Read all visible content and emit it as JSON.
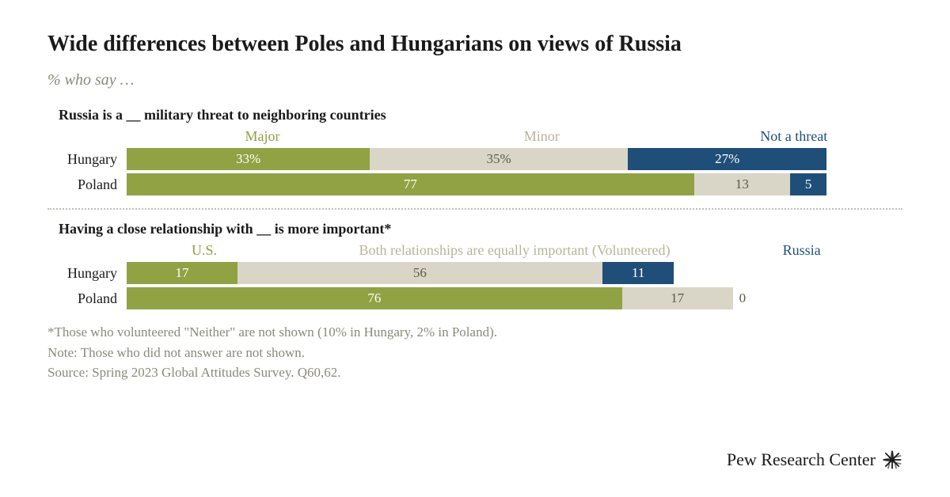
{
  "title": "Wide differences between Poles and Hungarians on views of Russia",
  "subtitle": "% who say …",
  "colors": {
    "green": "#90a244",
    "beige": "#d9d6c7",
    "navy": "#1f4e79",
    "text_dark": "#1a1a1a",
    "text_light": "#ffffff",
    "text_muted": "#8a8a7a"
  },
  "chart1": {
    "title": "Russia is a __ military threat to neighboring countries",
    "legend": [
      {
        "label": "Major",
        "color": "#90a244"
      },
      {
        "label": "Minor",
        "color": "#b8b49a"
      },
      {
        "label": "Not a threat",
        "color": "#1f4e79"
      }
    ],
    "legend_widths": [
      35,
      37,
      28
    ],
    "label_offset": 100,
    "total_width": 95,
    "rows": [
      {
        "label": "Hungary",
        "segs": [
          {
            "value": 33,
            "display": "33%",
            "color": "#90a244",
            "text_color": "#ffffff"
          },
          {
            "value": 35,
            "display": "35%",
            "color": "#d9d6c7",
            "text_color": "#5a5a4a"
          },
          {
            "value": 27,
            "display": "27%",
            "color": "#1f4e79",
            "text_color": "#ffffff"
          }
        ]
      },
      {
        "label": "Poland",
        "segs": [
          {
            "value": 77,
            "display": "77",
            "color": "#90a244",
            "text_color": "#ffffff"
          },
          {
            "value": 13,
            "display": "13",
            "color": "#d9d6c7",
            "text_color": "#5a5a4a"
          },
          {
            "value": 5,
            "display": "5",
            "color": "#1f4e79",
            "text_color": "#ffffff"
          }
        ]
      }
    ]
  },
  "chart2": {
    "title": "Having a close relationship with __ is more important*",
    "legend": [
      {
        "label": "U.S.",
        "color": "#90a244"
      },
      {
        "label": "Both relationships are equally important (Volunteered)",
        "color": "#b8b49a"
      },
      {
        "label": "Russia",
        "color": "#1f4e79"
      }
    ],
    "legend_widths": [
      20,
      60,
      14
    ],
    "label_offset": 100,
    "total_width": 84,
    "rows": [
      {
        "label": "Hungary",
        "segs": [
          {
            "value": 17,
            "display": "17",
            "color": "#90a244",
            "text_color": "#ffffff"
          },
          {
            "value": 56,
            "display": "56",
            "color": "#d9d6c7",
            "text_color": "#5a5a4a"
          },
          {
            "value": 11,
            "display": "11",
            "color": "#1f4e79",
            "text_color": "#ffffff"
          }
        ]
      },
      {
        "label": "Poland",
        "segs": [
          {
            "value": 76,
            "display": "76",
            "color": "#90a244",
            "text_color": "#ffffff"
          },
          {
            "value": 17,
            "display": "17",
            "color": "#d9d6c7",
            "text_color": "#5a5a4a"
          },
          {
            "value": 0,
            "display": "0",
            "color": "#1f4e79",
            "text_color": "#5a5a4a",
            "outside": true
          }
        ]
      }
    ]
  },
  "footnotes": [
    "*Those who volunteered \"Neither\" are not shown (10% in Hungary, 2% in Poland).",
    "Note: Those who did not answer are not shown.",
    "Source: Spring 2023 Global Attitudes Survey. Q60,62."
  ],
  "brand": "Pew Research Center"
}
